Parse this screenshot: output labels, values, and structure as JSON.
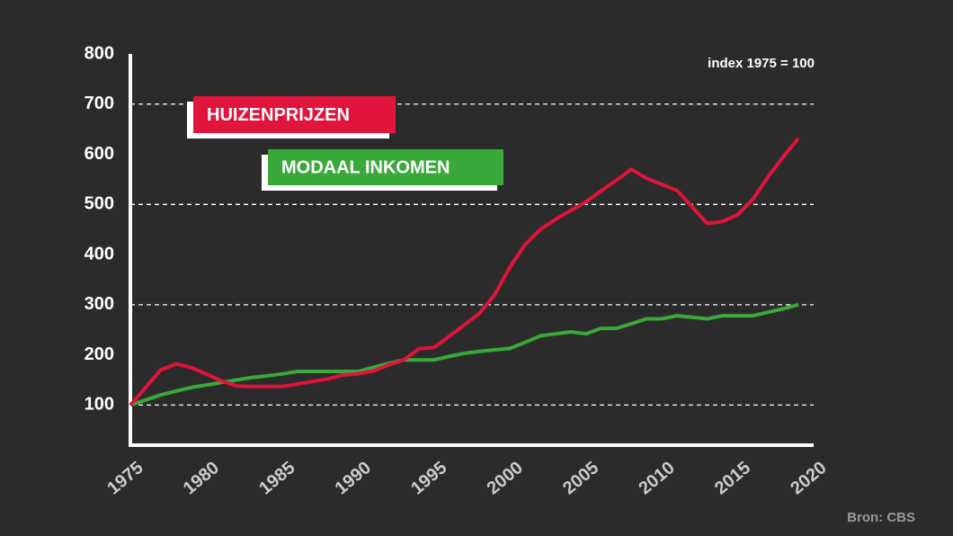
{
  "chart_data": {
    "type": "line",
    "annotation": "index 1975 = 100",
    "source": "Bron: CBS",
    "x": [
      1975,
      1976,
      1977,
      1978,
      1979,
      1980,
      1981,
      1982,
      1983,
      1984,
      1985,
      1986,
      1987,
      1988,
      1989,
      1990,
      1991,
      1992,
      1993,
      1994,
      1995,
      1996,
      1997,
      1998,
      1999,
      2000,
      2001,
      2002,
      2003,
      2004,
      2005,
      2006,
      2007,
      2008,
      2009,
      2010,
      2011,
      2012,
      2013,
      2014,
      2015,
      2016,
      2017,
      2018,
      2019
    ],
    "series": [
      {
        "name": "HUIZENPRIJZEN",
        "color": "#e0143c",
        "values": [
          100,
          135,
          170,
          182,
          175,
          162,
          148,
          138,
          137,
          137,
          137,
          142,
          147,
          152,
          160,
          162,
          168,
          180,
          190,
          212,
          215,
          237,
          260,
          283,
          320,
          375,
          420,
          450,
          470,
          488,
          505,
          527,
          548,
          570,
          552,
          540,
          528,
          495,
          462,
          466,
          480,
          510,
          555,
          595,
          632
        ]
      },
      {
        "name": "MODAAL INKOMEN",
        "color": "#3aa83a",
        "values": [
          100,
          110,
          120,
          128,
          135,
          140,
          145,
          150,
          155,
          158,
          162,
          167,
          167,
          167,
          167,
          167,
          175,
          183,
          190,
          190,
          190,
          197,
          203,
          207,
          210,
          213,
          225,
          238,
          242,
          246,
          242,
          253,
          253,
          262,
          272,
          272,
          278,
          275,
          272,
          278,
          278,
          278,
          285,
          292,
          300
        ]
      }
    ],
    "xlim": [
      1975,
      2020
    ],
    "xticks": [
      1975,
      1980,
      1985,
      1990,
      1995,
      2000,
      2005,
      2010,
      2015,
      2020
    ],
    "ylim": [
      20,
      800
    ],
    "yticks": [
      100,
      200,
      300,
      400,
      500,
      600,
      700,
      800
    ],
    "grid": "alternate"
  }
}
